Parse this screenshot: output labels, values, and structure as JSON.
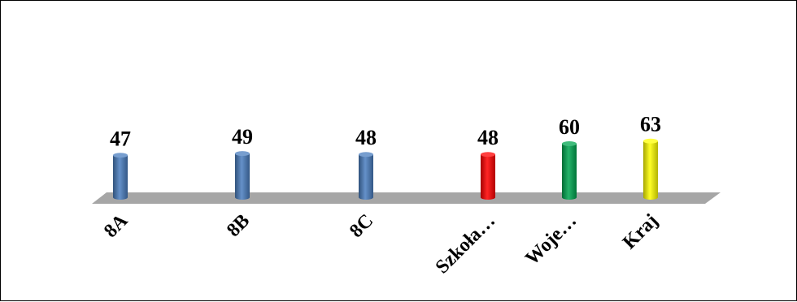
{
  "chart_data": {
    "type": "bar",
    "categories": [
      "8A",
      "8B",
      "8C",
      "Szkoła…",
      "Woje…",
      "Kraj"
    ],
    "values": [
      47,
      49,
      48,
      48,
      60,
      63
    ],
    "colors": [
      "#4a7ebf",
      "#4a7ebf",
      "#4a7ebf",
      "#ff0000",
      "#00a650",
      "#ffff00"
    ],
    "floor_color": "#a6a6a6",
    "style": "3d-cylinder",
    "data_labels": true,
    "legend": "none",
    "grid": false,
    "title": "",
    "xlabel": "",
    "ylabel": ""
  }
}
